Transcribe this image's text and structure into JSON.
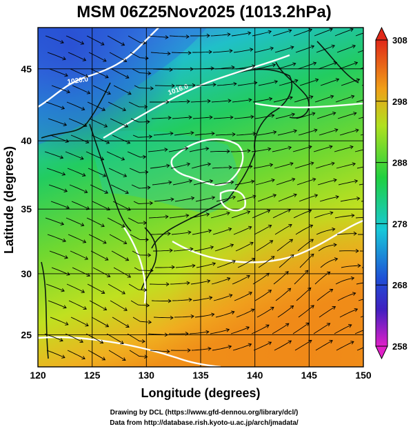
{
  "title": "MSM 06Z25Nov2025 (1013.2hPa)",
  "xlabel": "Longitude (degrees)",
  "ylabel": "Latitude  (degrees)",
  "x_ticks": [
    "120",
    "125",
    "130",
    "135",
    "140",
    "145",
    "150"
  ],
  "y_ticks": [
    "25",
    "30",
    "35",
    "40",
    "45"
  ],
  "colorbar": {
    "ticks": [
      "308",
      "298",
      "288",
      "278",
      "268",
      "258"
    ],
    "range": [
      258,
      308
    ]
  },
  "contour_labels": [
    "1020.0",
    "1016.0"
  ],
  "credits": {
    "line1": "Drawing by DCL (https://www.gfd-dennou.org/library/dcl/)",
    "line2": "Data from http://database.rish.kyoto-u.ac.jp/arch/jmadata/"
  },
  "map_extent": {
    "lon": [
      120,
      150
    ],
    "lat": [
      22.7,
      47.6
    ]
  },
  "colors": {
    "cold": "#1e4fd6",
    "cool": "#18c8d8",
    "mild": "#2ed050",
    "warm": "#c8e020",
    "hot": "#f09818",
    "contour": "#ffffff",
    "streamline": "#000000"
  },
  "chart_data": {
    "type": "heatmap",
    "title": "MSM 06Z25Nov2025 (1013.2hPa)",
    "xlabel": "Longitude (degrees)",
    "ylabel": "Latitude  (degrees)",
    "xlim": [
      120,
      150
    ],
    "ylim": [
      22.7,
      47.6
    ],
    "x_ticks": [
      120,
      125,
      130,
      135,
      140,
      145,
      150
    ],
    "y_ticks": [
      25,
      30,
      35,
      40,
      45
    ],
    "colorbar_range": [
      258,
      308
    ],
    "colorbar_ticks": [
      258,
      268,
      278,
      288,
      298,
      308
    ],
    "isobars": [
      1016.0,
      1020.0
    ],
    "grid": true
  }
}
